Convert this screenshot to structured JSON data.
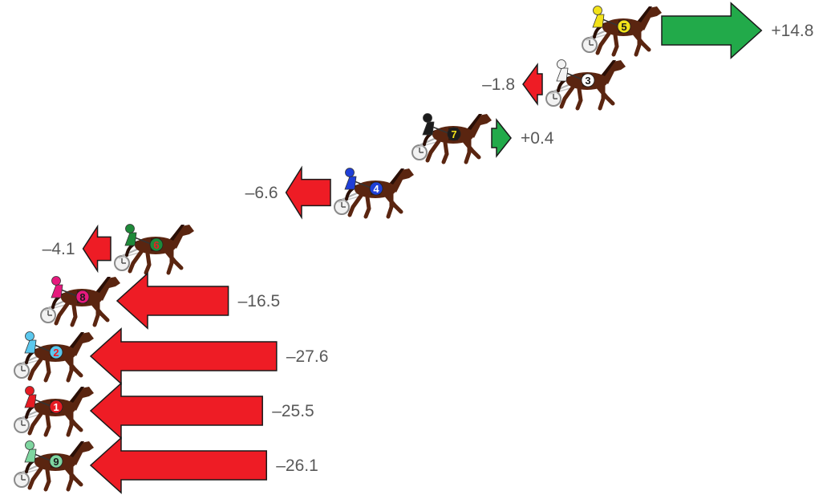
{
  "colors": {
    "gain_arrow": "#22aa4a",
    "loss_arrow": "#ee1c25",
    "horse_body": "#5a2510",
    "horse_mane": "#2a0f06",
    "sulky": "#bdbdbd",
    "label": "#595959"
  },
  "horses": [
    {
      "number": "5",
      "change": 14.8,
      "change_label": "+14.8",
      "bib_color": "#f2e21a",
      "bib_text": "#1a1a1a",
      "driver_color": "#f2e21a"
    },
    {
      "number": "3",
      "change": -1.8,
      "change_label": "–1.8",
      "bib_color": "#ffffff",
      "bib_text": "#1a1a1a",
      "driver_color": "#f4f4f4"
    },
    {
      "number": "7",
      "change": 0.4,
      "change_label": "+0.4",
      "bib_color": "#1c1c1c",
      "bib_text": "#f2e21a",
      "driver_color": "#1c1c1c"
    },
    {
      "number": "4",
      "change": -6.6,
      "change_label": "–6.6",
      "bib_color": "#1f3fd8",
      "bib_text": "#ffffff",
      "driver_color": "#1f3fd8"
    },
    {
      "number": "6",
      "change": -4.1,
      "change_label": "–4.1",
      "bib_color": "#1e8a3a",
      "bib_text": "#ee1c25",
      "driver_color": "#1e8a3a"
    },
    {
      "number": "8",
      "change": -16.5,
      "change_label": "–16.5",
      "bib_color": "#e6197d",
      "bib_text": "#1a1a1a",
      "driver_color": "#e6197d"
    },
    {
      "number": "2",
      "change": -27.6,
      "change_label": "–27.6",
      "bib_color": "#5bc8ee",
      "bib_text": "#ee1c25",
      "driver_color": "#5bc8ee"
    },
    {
      "number": "1",
      "change": -25.5,
      "change_label": "–25.5",
      "bib_color": "#e61b23",
      "bib_text": "#ffffff",
      "driver_color": "#e61b23"
    },
    {
      "number": "9",
      "change": -26.1,
      "change_label": "–26.1",
      "bib_color": "#7fd6a0",
      "bib_text": "#1a1a1a",
      "driver_color": "#7fd6a0"
    }
  ]
}
